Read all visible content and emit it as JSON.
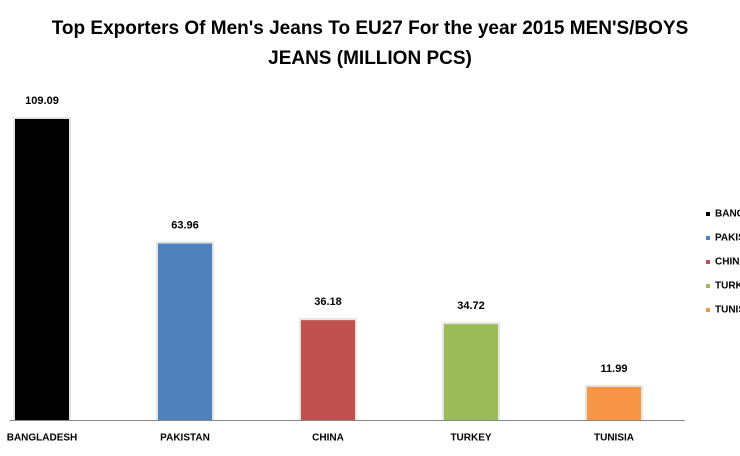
{
  "chart_data": {
    "type": "bar",
    "title": [
      "Top Exporters Of Men's Jeans To EU27 For the year 2015 MEN'S/BOYS",
      "JEANS (MILLION PCS)"
    ],
    "categories": [
      "BANGLADESH",
      "PAKISTAN",
      "CHINA",
      "TURKEY",
      "TUNISIA"
    ],
    "values": [
      109.09,
      63.96,
      36.18,
      34.72,
      11.99
    ],
    "colors": [
      "#000000",
      "#4f81bd",
      "#c0504d",
      "#9bbb59",
      "#f79646"
    ],
    "grid": false,
    "legend": "right"
  }
}
